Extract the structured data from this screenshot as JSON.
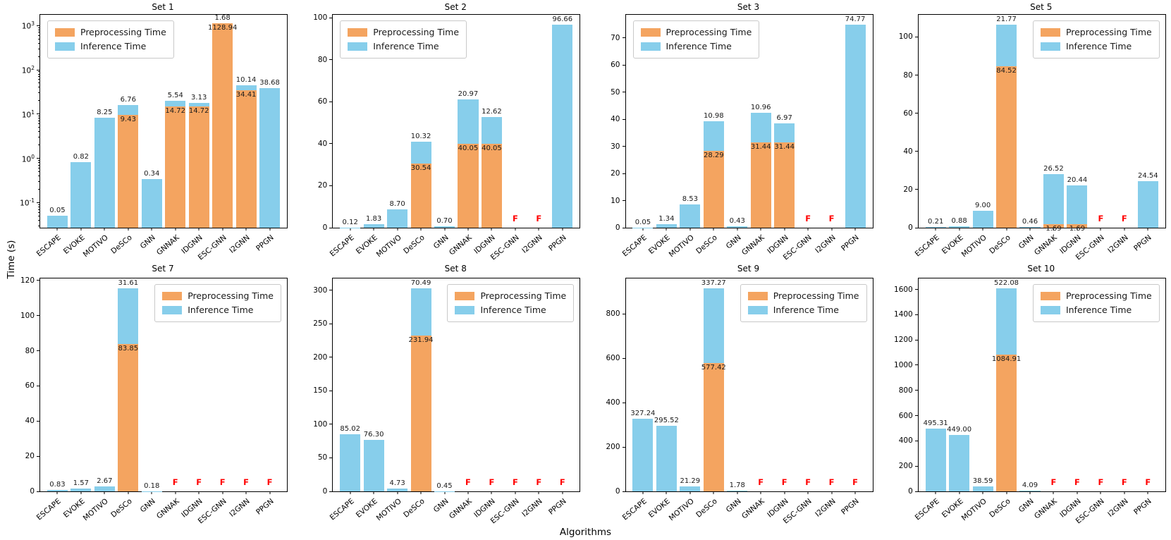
{
  "figure": {
    "ylabel": "Time (s)",
    "xlabel": "Algorithms"
  },
  "legend": {
    "items": [
      {
        "label": "Preprocessing Time",
        "color": "#F4A460"
      },
      {
        "label": "Inference Time",
        "color": "#87CEEB"
      }
    ]
  },
  "fail_marker": {
    "text": "F",
    "color": "#FF0000"
  },
  "colors": {
    "preprocessing": "#F4A460",
    "inference": "#87CEEB",
    "spine": "#000000"
  },
  "chart_data": [
    {
      "type": "bar",
      "stacked": true,
      "title": "Set 1",
      "yscale": "log",
      "ylim": [
        0.027,
        1750
      ],
      "log_ticks": [
        -1,
        0,
        1,
        2,
        3
      ],
      "legend_position": "upper left",
      "grid": false,
      "categories": [
        "ESCAPE",
        "EVOKE",
        "MOTIVO",
        "DeSCo",
        "GNN",
        "GNNAK",
        "IDGNN",
        "ESC-GNN",
        "I2GNN",
        "PPGN"
      ],
      "series": [
        {
          "name": "Preprocessing Time",
          "color": "#F4A460",
          "values": [
            null,
            null,
            null,
            9.43,
            null,
            14.72,
            14.72,
            1128.94,
            34.41,
            null
          ]
        },
        {
          "name": "Inference Time",
          "color": "#87CEEB",
          "values": [
            0.05,
            0.82,
            8.25,
            6.76,
            0.34,
            5.54,
            3.13,
            1.68,
            10.14,
            38.68
          ]
        }
      ],
      "fails": [
        false,
        false,
        false,
        false,
        false,
        false,
        false,
        false,
        false,
        false
      ]
    },
    {
      "type": "bar",
      "stacked": true,
      "title": "Set 2",
      "yscale": "linear",
      "ylim": [
        0,
        101.5
      ],
      "yticks": [
        0,
        20,
        40,
        60,
        80,
        100
      ],
      "legend_position": "upper left",
      "grid": false,
      "categories": [
        "ESCAPE",
        "EVOKE",
        "MOTIVO",
        "DeSCo",
        "GNN",
        "GNNAK",
        "IDGNN",
        "ESC-GNN",
        "I2GNN",
        "PPGN"
      ],
      "series": [
        {
          "name": "Preprocessing Time",
          "color": "#F4A460",
          "values": [
            null,
            null,
            null,
            30.54,
            null,
            40.05,
            40.05,
            null,
            null,
            null
          ]
        },
        {
          "name": "Inference Time",
          "color": "#87CEEB",
          "values": [
            0.12,
            1.83,
            8.7,
            10.32,
            0.7,
            20.97,
            12.62,
            null,
            null,
            96.66
          ]
        }
      ],
      "fails": [
        false,
        false,
        false,
        false,
        false,
        false,
        false,
        true,
        true,
        false
      ]
    },
    {
      "type": "bar",
      "stacked": true,
      "title": "Set 3",
      "yscale": "linear",
      "ylim": [
        0,
        78.5
      ],
      "yticks": [
        0,
        10,
        20,
        30,
        40,
        50,
        60,
        70
      ],
      "legend_position": "upper left",
      "grid": false,
      "categories": [
        "ESCAPE",
        "EVOKE",
        "MOTIVO",
        "DeSCo",
        "GNN",
        "GNNAK",
        "IDGNN",
        "ESC-GNN",
        "I2GNN",
        "PPGN"
      ],
      "series": [
        {
          "name": "Preprocessing Time",
          "color": "#F4A460",
          "values": [
            null,
            null,
            null,
            28.29,
            null,
            31.44,
            31.44,
            null,
            null,
            null
          ]
        },
        {
          "name": "Inference Time",
          "color": "#87CEEB",
          "values": [
            0.05,
            1.34,
            8.53,
            10.98,
            0.43,
            10.96,
            6.97,
            null,
            null,
            74.77
          ]
        }
      ],
      "fails": [
        false,
        false,
        false,
        false,
        false,
        false,
        false,
        true,
        true,
        false
      ]
    },
    {
      "type": "bar",
      "stacked": true,
      "title": "Set 5",
      "yscale": "linear",
      "ylim": [
        0,
        111.6
      ],
      "yticks": [
        0,
        20,
        40,
        60,
        80,
        100
      ],
      "legend_position": "upper right",
      "grid": false,
      "categories": [
        "ESCAPE",
        "EVOKE",
        "MOTIVO",
        "DeSCo",
        "GNN",
        "GNNAK",
        "IDGNN",
        "ESC-GNN",
        "I2GNN",
        "PPGN"
      ],
      "series": [
        {
          "name": "Preprocessing Time",
          "color": "#F4A460",
          "values": [
            null,
            null,
            null,
            84.52,
            null,
            1.69,
            1.69,
            null,
            null,
            null
          ]
        },
        {
          "name": "Inference Time",
          "color": "#87CEEB",
          "values": [
            0.21,
            0.88,
            9.0,
            21.77,
            0.46,
            26.52,
            20.44,
            null,
            null,
            24.54
          ]
        }
      ],
      "fails": [
        false,
        false,
        false,
        false,
        false,
        false,
        false,
        true,
        true,
        false
      ]
    },
    {
      "type": "bar",
      "stacked": true,
      "title": "Set 7",
      "yscale": "linear",
      "ylim": [
        0,
        121.2
      ],
      "yticks": [
        0,
        20,
        40,
        60,
        80,
        100,
        120
      ],
      "legend_position": "upper right",
      "grid": false,
      "categories": [
        "ESCAPE",
        "EVOKE",
        "MOTIVO",
        "DeSCo",
        "GNN",
        "GNNAK",
        "IDGNN",
        "ESC-GNN",
        "I2GNN",
        "PPGN"
      ],
      "series": [
        {
          "name": "Preprocessing Time",
          "color": "#F4A460",
          "values": [
            null,
            null,
            null,
            83.85,
            null,
            null,
            null,
            null,
            null,
            null
          ]
        },
        {
          "name": "Inference Time",
          "color": "#87CEEB",
          "values": [
            0.83,
            1.57,
            2.67,
            31.61,
            0.18,
            null,
            null,
            null,
            null,
            null
          ]
        }
      ],
      "fails": [
        false,
        false,
        false,
        false,
        false,
        true,
        true,
        true,
        true,
        true
      ]
    },
    {
      "type": "bar",
      "stacked": true,
      "title": "Set 8",
      "yscale": "linear",
      "ylim": [
        0,
        317.5
      ],
      "yticks": [
        0,
        50,
        100,
        150,
        200,
        250,
        300
      ],
      "legend_position": "upper right",
      "grid": false,
      "categories": [
        "ESCAPE",
        "EVOKE",
        "MOTIVO",
        "DeSCo",
        "GNN",
        "GNNAK",
        "IDGNN",
        "ESC-GNN",
        "I2GNN",
        "PPGN"
      ],
      "series": [
        {
          "name": "Preprocessing Time",
          "color": "#F4A460",
          "values": [
            null,
            null,
            null,
            231.94,
            null,
            null,
            null,
            null,
            null,
            null
          ]
        },
        {
          "name": "Inference Time",
          "color": "#87CEEB",
          "values": [
            85.02,
            76.3,
            4.73,
            70.49,
            0.45,
            null,
            null,
            null,
            null,
            null
          ]
        }
      ],
      "fails": [
        false,
        false,
        false,
        false,
        false,
        true,
        true,
        true,
        true,
        true
      ]
    },
    {
      "type": "bar",
      "stacked": true,
      "title": "Set 9",
      "yscale": "linear",
      "ylim": [
        0,
        960
      ],
      "yticks": [
        0,
        200,
        400,
        600,
        800
      ],
      "legend_position": "upper right",
      "grid": false,
      "categories": [
        "ESCAPE",
        "EVOKE",
        "MOTIVO",
        "DeSCo",
        "GNN",
        "GNNAK",
        "IDGNN",
        "ESC-GNN",
        "I2GNN",
        "PPGN"
      ],
      "series": [
        {
          "name": "Preprocessing Time",
          "color": "#F4A460",
          "values": [
            null,
            null,
            null,
            577.42,
            null,
            null,
            null,
            null,
            null,
            null
          ]
        },
        {
          "name": "Inference Time",
          "color": "#87CEEB",
          "values": [
            327.24,
            295.52,
            21.29,
            337.27,
            1.78,
            null,
            null,
            null,
            null,
            null
          ]
        }
      ],
      "fails": [
        false,
        false,
        false,
        false,
        false,
        true,
        true,
        true,
        true,
        true
      ]
    },
    {
      "type": "bar",
      "stacked": true,
      "title": "Set 10",
      "yscale": "linear",
      "ylim": [
        0,
        1687
      ],
      "yticks": [
        0,
        200,
        400,
        600,
        800,
        1000,
        1200,
        1400,
        1600
      ],
      "legend_position": "upper right",
      "grid": false,
      "categories": [
        "ESCAPE",
        "EVOKE",
        "MOTIVO",
        "DeSCo",
        "GNN",
        "GNNAK",
        "IDGNN",
        "ESC-GNN",
        "I2GNN",
        "PPGN"
      ],
      "series": [
        {
          "name": "Preprocessing Time",
          "color": "#F4A460",
          "values": [
            null,
            null,
            null,
            1084.91,
            null,
            null,
            null,
            null,
            null,
            null
          ]
        },
        {
          "name": "Inference Time",
          "color": "#87CEEB",
          "values": [
            495.31,
            449.0,
            38.59,
            522.08,
            4.09,
            null,
            null,
            null,
            null,
            null
          ]
        }
      ],
      "fails": [
        false,
        false,
        false,
        false,
        false,
        true,
        true,
        true,
        true,
        true
      ]
    }
  ]
}
